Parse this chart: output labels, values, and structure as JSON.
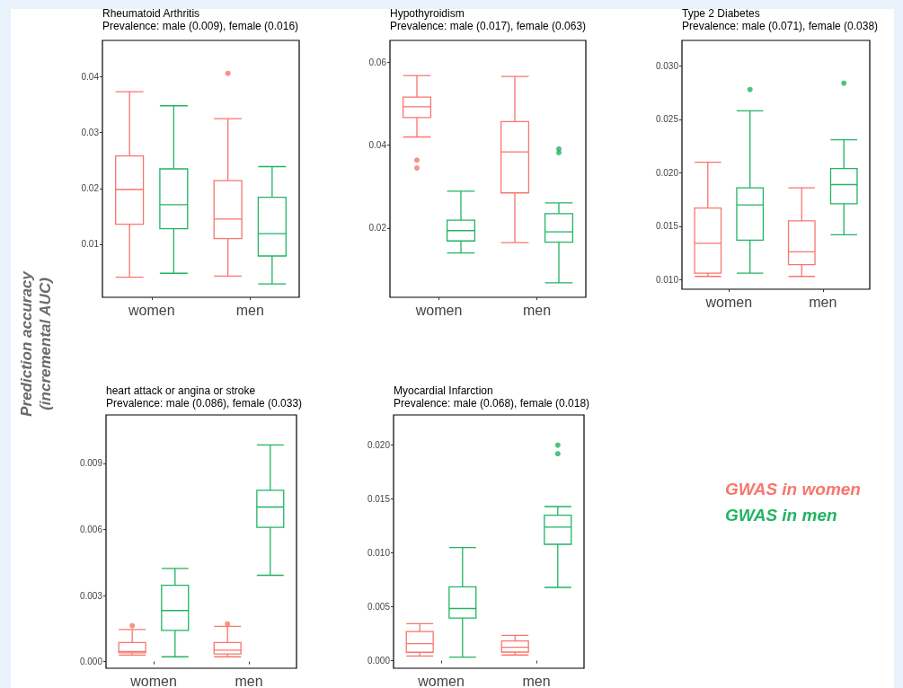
{
  "chart_data": [
    {
      "type": "box",
      "title": "Rheumatoid Arthritis",
      "subtitle": "Prevalence: male (0.009), female (0.016)",
      "ylabel": "Prediction accuracy\n(incremental AUC)",
      "categories": [
        "women",
        "men"
      ],
      "ylim": [
        0.0005,
        0.0465
      ],
      "yticks": [
        0.01,
        0.02,
        0.03,
        0.04
      ],
      "series": [
        {
          "color": "#f8766d",
          "boxes": [
            {
              "low": 0.0041,
              "q1": 0.0136,
              "median": 0.0198,
              "q3": 0.0258,
              "high": 0.0373
            },
            {
              "low": 0.0043,
              "q1": 0.011,
              "median": 0.0145,
              "q3": 0.0214,
              "high": 0.0325,
              "outliers": [
                0.0406
              ]
            }
          ]
        },
        {
          "color": "#21b463",
          "boxes": [
            {
              "low": 0.0048,
              "q1": 0.0128,
              "median": 0.0171,
              "q3": 0.0235,
              "high": 0.0348
            },
            {
              "low": 0.0029,
              "q1": 0.0079,
              "median": 0.0119,
              "q3": 0.0184,
              "high": 0.0239
            }
          ]
        }
      ]
    },
    {
      "type": "box",
      "title": "Hypothyroidism",
      "subtitle": "Prevalence: male (0.017), female (0.063)",
      "categories": [
        "women",
        "men"
      ],
      "ylim": [
        0.0033,
        0.0653
      ],
      "yticks": [
        0.02,
        0.04,
        0.06
      ],
      "series": [
        {
          "color": "#f8766d",
          "boxes": [
            {
              "low": 0.042,
              "q1": 0.0467,
              "median": 0.0493,
              "q3": 0.0516,
              "high": 0.0568,
              "outliers": [
                0.0364,
                0.0345
              ]
            },
            {
              "low": 0.0165,
              "q1": 0.0285,
              "median": 0.0384,
              "q3": 0.0457,
              "high": 0.0566
            }
          ]
        },
        {
          "color": "#21b463",
          "boxes": [
            {
              "low": 0.014,
              "q1": 0.0169,
              "median": 0.0194,
              "q3": 0.0219,
              "high": 0.0289
            },
            {
              "low": 0.0068,
              "q1": 0.0166,
              "median": 0.0191,
              "q3": 0.0235,
              "high": 0.0261,
              "outliers": [
                0.0391,
                0.0382
              ]
            }
          ]
        }
      ]
    },
    {
      "type": "box",
      "title": "Type 2 Diabetes",
      "subtitle": "Prevalence: male (0.071), female (0.038)",
      "categories": [
        "women",
        "men"
      ],
      "ylim": [
        0.0091,
        0.0324
      ],
      "yticks": [
        {
          "value": 0.01,
          "label": "0.010"
        },
        {
          "value": 0.015,
          "label": "0.015"
        },
        {
          "value": 0.02,
          "label": "0.020"
        },
        {
          "value": 0.025,
          "label": "0.025"
        },
        {
          "value": 0.03,
          "label": "0.030"
        }
      ],
      "series": [
        {
          "color": "#f8766d",
          "boxes": [
            {
              "low": 0.0103,
              "q1": 0.0106,
              "median": 0.0134,
              "q3": 0.0167,
              "high": 0.021
            },
            {
              "low": 0.0103,
              "q1": 0.0114,
              "median": 0.0126,
              "q3": 0.0155,
              "high": 0.0186
            }
          ]
        },
        {
          "color": "#21b463",
          "boxes": [
            {
              "low": 0.0106,
              "q1": 0.0137,
              "median": 0.017,
              "q3": 0.0186,
              "high": 0.0258,
              "outliers": [
                0.0278
              ]
            },
            {
              "low": 0.0142,
              "q1": 0.0171,
              "median": 0.0189,
              "q3": 0.0204,
              "high": 0.0231,
              "outliers": [
                0.0284
              ]
            }
          ]
        }
      ]
    },
    {
      "type": "box",
      "title": "heart attack or angina or stroke",
      "subtitle": "Prevalence: male (0.086), female (0.033)",
      "categories": [
        "women",
        "men"
      ],
      "ylim": [
        -0.0003,
        0.0112
      ],
      "yticks": [
        {
          "value": 0,
          "label": "0.000"
        },
        {
          "value": 0.003,
          "label": "0.003"
        },
        {
          "value": 0.006,
          "label": "0.006"
        },
        {
          "value": 0.009,
          "label": "0.009"
        }
      ],
      "series": [
        {
          "color": "#f8766d",
          "boxes": [
            {
              "low": 0.0003,
              "q1": 0.0004,
              "median": 0.00046,
              "q3": 0.00087,
              "high": 0.00146,
              "outliers": [
                0.00163
              ]
            },
            {
              "low": 0.00022,
              "q1": 0.00035,
              "median": 0.00052,
              "q3": 0.00087,
              "high": 0.0016,
              "outliers": [
                0.00171
              ]
            }
          ]
        },
        {
          "color": "#21b463",
          "boxes": [
            {
              "low": 0.00022,
              "q1": 0.00142,
              "median": 0.00232,
              "q3": 0.00347,
              "high": 0.00423
            },
            {
              "low": 0.00392,
              "q1": 0.0061,
              "median": 0.00702,
              "q3": 0.00778,
              "high": 0.00984
            }
          ]
        }
      ]
    },
    {
      "type": "box",
      "title": "Myocardial Infarction",
      "subtitle": "Prevalence: male (0.068), female (0.018)",
      "categories": [
        "women",
        "men"
      ],
      "ylim": [
        -0.0007,
        0.0228
      ],
      "yticks": [
        {
          "value": 0,
          "label": "0.000"
        },
        {
          "value": 0.005,
          "label": "0.005"
        },
        {
          "value": 0.01,
          "label": "0.010"
        },
        {
          "value": 0.015,
          "label": "0.015"
        },
        {
          "value": 0.02,
          "label": "0.020"
        }
      ],
      "legend": "right",
      "series": [
        {
          "name": "GWAS in women",
          "color": "#f8766d",
          "boxes": [
            {
              "low": 0.00044,
              "q1": 0.00078,
              "median": 0.00158,
              "q3": 0.00271,
              "high": 0.00343
            },
            {
              "low": 0.00053,
              "q1": 0.0008,
              "median": 0.00125,
              "q3": 0.00183,
              "high": 0.00235
            }
          ]
        },
        {
          "name": "GWAS in men",
          "color": "#21b463",
          "boxes": [
            {
              "low": 0.00033,
              "q1": 0.00396,
              "median": 0.00484,
              "q3": 0.00686,
              "high": 0.0105
            },
            {
              "low": 0.0068,
              "q1": 0.0108,
              "median": 0.0124,
              "q3": 0.0135,
              "high": 0.0143,
              "outliers": [
                0.02,
                0.0192
              ]
            }
          ]
        }
      ]
    }
  ]
}
